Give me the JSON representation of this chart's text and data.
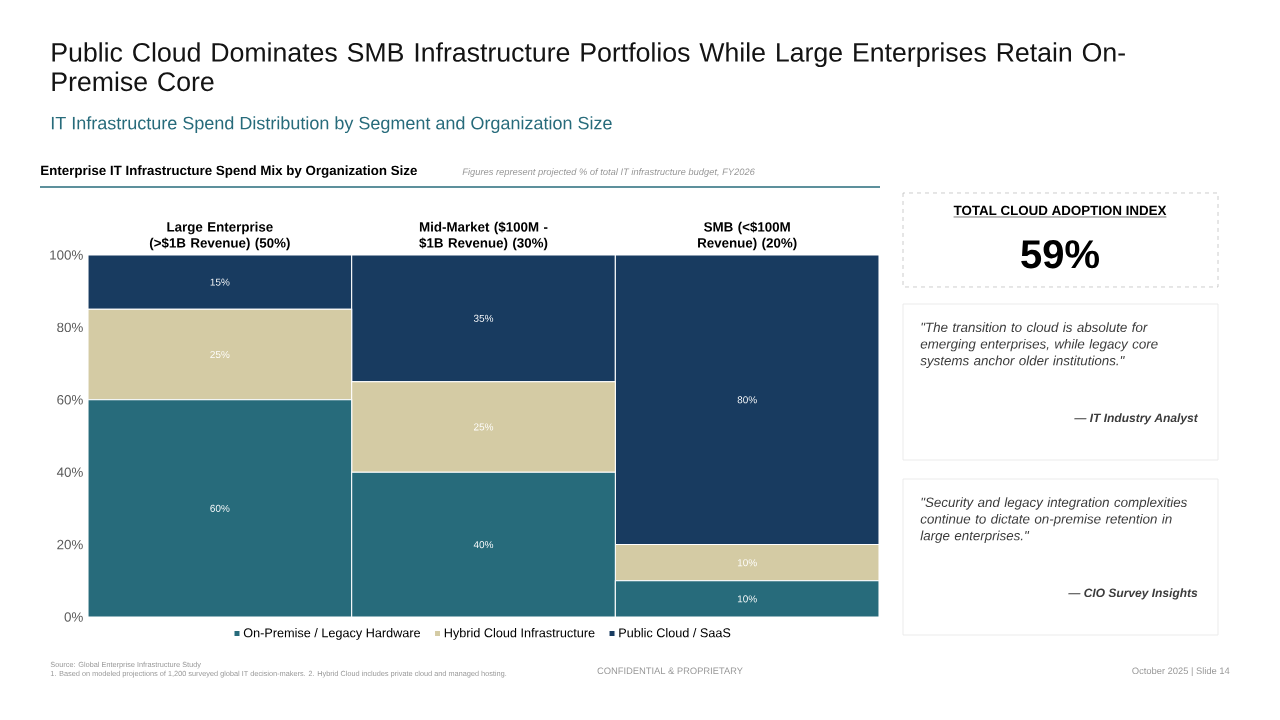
{
  "chart_data": {
    "type": "bar",
    "stacked": true,
    "title": "Public Cloud Dominates SMB Infrastructure Portfolios While Large Enterprises Retain On-Premise Core",
    "subtitle": "IT Infrastructure Spend Distribution by Segment and Organization Size",
    "categories": [
      "Large Enterprise (>$1B Revenue) (50%)",
      "Mid-Market ($100M - $1B Revenue) (30%)",
      "SMB (<$100M Revenue) (20%)"
    ],
    "series": [
      {
        "name": "On-Premise / Legacy Hardware",
        "color": "#276b7b",
        "values": [
          60,
          40,
          10
        ],
        "value_labels": [
          "60%",
          "40%",
          "10%"
        ]
      },
      {
        "name": "Hybrid Cloud Infrastructure",
        "color": "#d4cba4",
        "values": [
          25,
          25,
          10
        ],
        "value_labels": [
          "25%",
          "25%",
          "10%"
        ]
      },
      {
        "name": "Public Cloud / SaaS",
        "color": "#183b60",
        "values": [
          15,
          35,
          80
        ],
        "value_labels": [
          "15%",
          "35%",
          "80%"
        ]
      }
    ],
    "ylim": [
      0,
      100
    ],
    "yticks": [
      {
        "value": 0,
        "label": "0%"
      },
      {
        "value": 20,
        "label": "20%"
      },
      {
        "value": 40,
        "label": "40%"
      },
      {
        "value": 60,
        "label": "60%"
      },
      {
        "value": 80,
        "label": "80%"
      },
      {
        "value": 100,
        "label": "100%"
      }
    ],
    "legend": "bottom",
    "annotations": [
      "Enterprise IT Infrastructure Spend Mix by Organization Size",
      "Figures represent projected % of total IT infrastructure budget, FY2026",
      "TOTAL CLOUD ADOPTION INDEX",
      "59%",
      "\"The transition to cloud is absolute for emerging enterprises, while legacy core systems anchor older institutions.\"",
      "— IT Industry Analyst",
      "\"Security and legacy integration complexities continue to dictate on-premise retention in large enterprises.\"",
      "— CIO Survey Insights",
      "Source: Global Enterprise Infrastructure Study",
      "1. Based on modeled projections of 1,200 surveyed global IT decision-makers. 2. Hybrid Cloud includes private cloud and managed hosting.",
      "CONFIDENTIAL & PROPRIETARY",
      "October 2025 | Slide 14"
    ]
  }
}
